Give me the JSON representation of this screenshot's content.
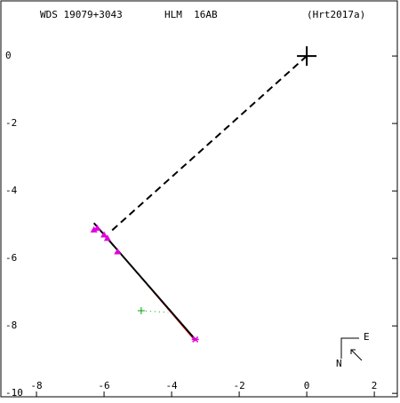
{
  "chart_data": {
    "type": "scatter",
    "title": "WDS 19079+3043",
    "subtitle": "HLM  16AB",
    "reference": "(Hrt2017a)",
    "xlim": [
      -9.08,
      2.76
    ],
    "ylim": [
      -10.18,
      1.66
    ],
    "xticks": [
      -8,
      -6,
      -4,
      -2,
      0,
      2
    ],
    "yticks": [
      0,
      -2,
      -4,
      -6,
      -8,
      -10
    ],
    "primary": {
      "color": "#000000",
      "x": [
        0
      ],
      "y": [
        0
      ]
    },
    "connector": {
      "color": "#000000",
      "x": [
        0,
        -5.8
      ],
      "y": [
        0,
        -5.2
      ]
    },
    "fit_line": {
      "color": "#000000",
      "x": [
        -6.3,
        -3.3
      ],
      "y": [
        -4.95,
        -8.4
      ]
    },
    "orbit_line": {
      "color": "#ff0000",
      "x": [
        -6.2,
        -3.3
      ],
      "y": [
        -5.05,
        -8.45
      ]
    },
    "observations": {
      "color": "#e000e0",
      "x": [
        -6.3,
        -6.2,
        -6.0,
        -5.9,
        -5.6
      ],
      "y": [
        -5.15,
        -5.1,
        -5.3,
        -5.4,
        -5.8
      ]
    },
    "last_observation": {
      "color": "#e000e0",
      "x": [
        -3.3
      ],
      "y": [
        -8.4
      ]
    },
    "residual": {
      "color": "#00a000",
      "x": [
        -4.9,
        -4.1
      ],
      "y": [
        -7.55,
        -7.6
      ]
    },
    "compass": {
      "east": "E",
      "north": "N"
    }
  }
}
